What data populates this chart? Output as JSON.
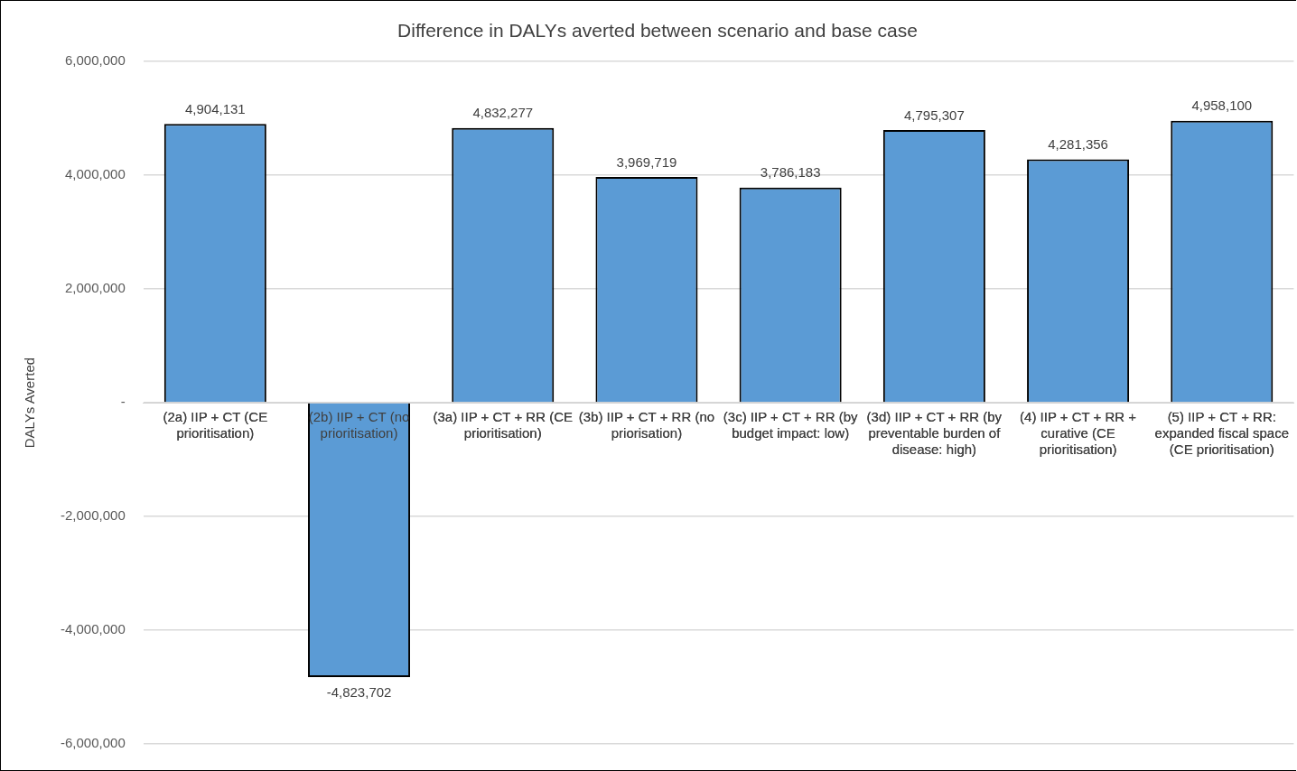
{
  "chart_data": {
    "type": "bar",
    "title": "Difference in DALYs averted between scenario and base case",
    "ylabel": "DALYs Averted",
    "categories": [
      "(2a) IIP + CT (CE prioritisation)",
      "(2b) IIP + CT (no prioritisation)",
      "(3a) IIP + CT + RR (CE prioritisation)",
      "(3b) IIP + CT + RR (no priorisation)",
      "(3c) IIP + CT + RR (by budget impact: low)",
      "(3d) IIP + CT + RR (by preventable burden of disease: high)",
      "(4) IIP + CT + RR + curative (CE prioritisation)",
      "(5) IIP + CT + RR: expanded fiscal space (CE prioritisation)"
    ],
    "values": [
      4904131,
      -4823702,
      4832277,
      3969719,
      3786183,
      4795307,
      4281356,
      4958100
    ],
    "value_labels": [
      "4,904,131",
      "-4,823,702",
      "4,832,277",
      "3,969,719",
      "3,786,183",
      "4,795,307",
      "4,281,356",
      "4,958,100"
    ],
    "color": "#5b9bd5",
    "ylim": [
      -6000000,
      6000000
    ],
    "yticks": [
      {
        "value": -6000000,
        "label": "-6,000,000"
      },
      {
        "value": -4000000,
        "label": "-4,000,000"
      },
      {
        "value": -2000000,
        "label": "-2,000,000"
      },
      {
        "value": 0,
        "label": "-"
      },
      {
        "value": 2000000,
        "label": "2,000,000"
      },
      {
        "value": 4000000,
        "label": "4,000,000"
      },
      {
        "value": 6000000,
        "label": "6,000,000"
      }
    ],
    "grid": "y",
    "legend": false
  }
}
